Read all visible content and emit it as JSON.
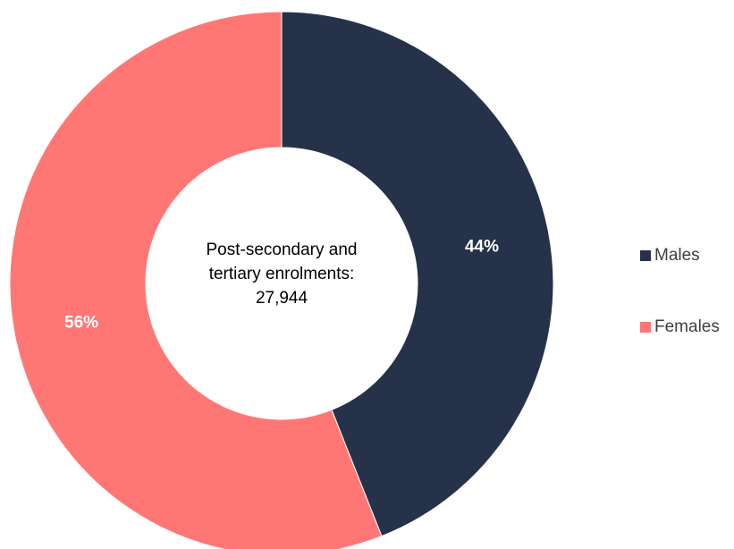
{
  "chart_data": {
    "type": "pie",
    "donut": true,
    "center_label": [
      "Post-secondary and",
      "tertiary enrolments:",
      "27,944"
    ],
    "slices": [
      {
        "name": "Males",
        "value": 44,
        "label": "44%",
        "color": "#253249"
      },
      {
        "name": "Females",
        "value": 56,
        "label": "56%",
        "color": "#FF7775"
      }
    ],
    "legend_position": "right",
    "start_angle": "top, clockwise"
  }
}
